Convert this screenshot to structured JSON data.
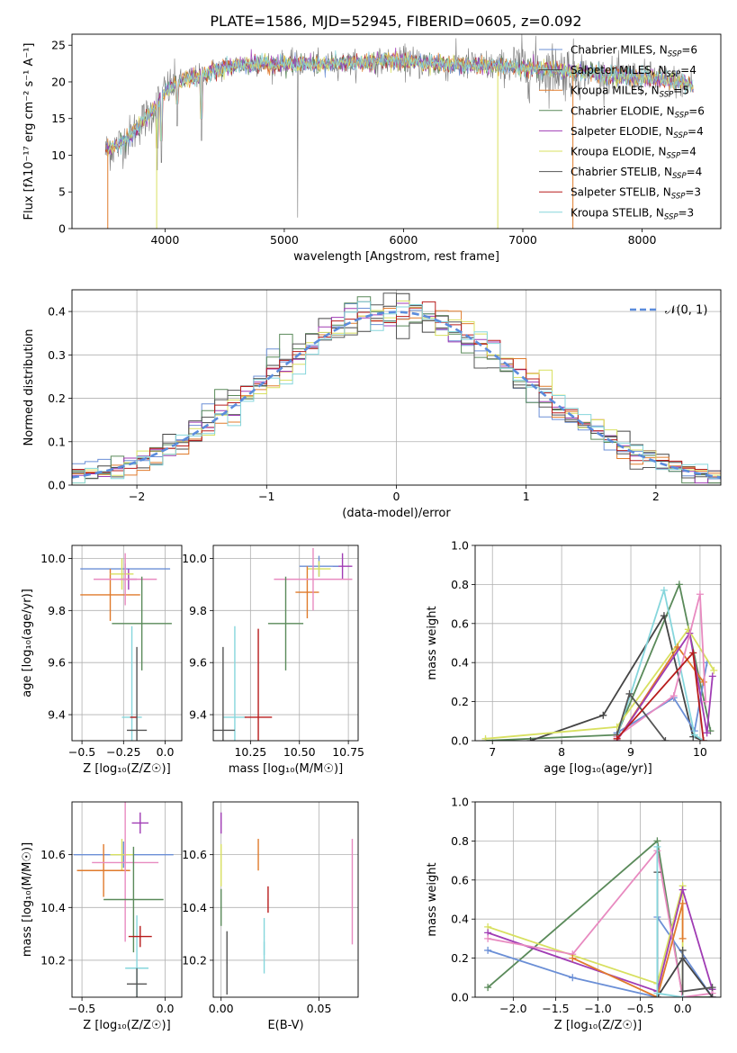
{
  "figure_title": "PLATE=1586, MJD=52945, FIBERID=0605, z=0.092",
  "colors": {
    "c_miles": "#6b8fd6",
    "s_miles": "#444444",
    "k_miles": "#e07b2c",
    "c_elodie": "#5a8a5a",
    "s_elodie": "#a03cb4",
    "k_elodie": "#d8e060",
    "c_stelib": "#555555",
    "s_stelib": "#b81c1c",
    "k_stelib": "#86d6dc",
    "pink": "#e88ac0",
    "normal_curve": "#5b8cdc"
  },
  "chart_data": [
    {
      "type": "line",
      "title": "PLATE=1586, MJD=52945, FIBERID=0605, z=0.092",
      "xlabel": "wavelength [Angstrom, rest frame]",
      "ylabel": "Flux [fλ10⁻¹⁷ erg cm⁻² s⁻¹ A⁻¹]",
      "xlim": [
        3220,
        8660
      ],
      "ylim": [
        0,
        26.5
      ],
      "xticks": [
        "4000",
        "5000",
        "6000",
        "7000",
        "8000"
      ],
      "yticks": [
        "0",
        "5",
        "10",
        "15",
        "20",
        "25"
      ],
      "legend_position": "right",
      "series": [
        {
          "name": "Chabrier MILES, N_SSP=6",
          "color": "#6b8fd6"
        },
        {
          "name": "Salpeter MILES, N_SSP=4",
          "color": "#444444"
        },
        {
          "name": "Kroupa MILES, N_SSP=5",
          "color": "#e07b2c"
        },
        {
          "name": "Chabrier ELODIE, N_SSP=6",
          "color": "#5a8a5a"
        },
        {
          "name": "Salpeter ELODIE, N_SSP=4",
          "color": "#a03cb4"
        },
        {
          "name": "Kroupa ELODIE, N_SSP=4",
          "color": "#d8e060"
        },
        {
          "name": "Chabrier STELIB, N_SSP=4",
          "color": "#555555"
        },
        {
          "name": "Salpeter STELIB, N_SSP=3",
          "color": "#b81c1c"
        },
        {
          "name": "Kroupa STELIB, N_SSP=3",
          "color": "#86d6dc"
        }
      ],
      "continuum": {
        "x": [
          3500,
          3600,
          3700,
          3800,
          3900,
          4000,
          4100,
          4200,
          4300,
          4400,
          4500,
          4700,
          5000,
          5300,
          5600,
          5900,
          6200,
          6500,
          6800,
          7100,
          7400,
          7700,
          8000,
          8200,
          8430
        ],
        "y": [
          10.5,
          11.3,
          12.5,
          14.5,
          16.0,
          18.8,
          19.8,
          20.5,
          20.8,
          21.5,
          22.0,
          22.5,
          22.5,
          22.4,
          22.6,
          22.9,
          22.5,
          22.3,
          22.1,
          21.8,
          21.5,
          21.0,
          20.6,
          20.3,
          19.6
        ]
      },
      "absorption_lines": [
        {
          "x": 3934,
          "y": 8
        },
        {
          "x": 3969,
          "y": 9
        },
        {
          "x": 4102,
          "y": 14
        },
        {
          "x": 4305,
          "y": 12
        },
        {
          "x": 5112,
          "y": 1.5
        }
      ],
      "model_edges": [
        {
          "x": 3520,
          "start": 0,
          "end": 10.5
        },
        {
          "x": 3930,
          "start": 0,
          "end": 15
        },
        {
          "x": 6790,
          "start": 0,
          "end": 22.3
        },
        {
          "x": 7420,
          "start": 0,
          "end": 21.5
        }
      ]
    },
    {
      "type": "line",
      "xlabel": "(data-model)/error",
      "ylabel": "Normed distribution",
      "xlim": [
        -2.5,
        2.5
      ],
      "ylim": [
        0,
        0.45
      ],
      "xticks": [
        "−2",
        "−1",
        "0",
        "1",
        "2"
      ],
      "yticks": [
        "0.0",
        "0.1",
        "0.2",
        "0.3",
        "0.4"
      ],
      "legend": "𝒩(0, 1)",
      "legend_position": "top-right",
      "bin_width": 0.1,
      "histogram_series": 9
    },
    {
      "type": "scatter",
      "xlabel": "Z [log₁₀(Z/Z☉)]",
      "ylabel": "age  [log₁₀(age/yr)]",
      "xlim": [
        -0.56,
        0.1
      ],
      "ylim": [
        9.3,
        10.05
      ],
      "xticks": [
        "−0.5",
        "−0.25",
        "0.0"
      ],
      "yticks": [
        "9.4",
        "9.6",
        "9.8",
        "10.0"
      ],
      "points": [
        {
          "x": -0.24,
          "y": 9.96,
          "xerr": 0.27,
          "yerr": 0.02,
          "color": "#6b8fd6"
        },
        {
          "x": -0.22,
          "y": 9.92,
          "xerr": 0.05,
          "yerr": 0.04,
          "color": "#a03cb4"
        },
        {
          "x": -0.33,
          "y": 9.86,
          "xerr": 0.18,
          "yerr": 0.1,
          "color": "#e07b2c"
        },
        {
          "x": -0.26,
          "y": 9.94,
          "xerr": 0.07,
          "yerr": 0.06,
          "color": "#d8e060"
        },
        {
          "x": -0.24,
          "y": 9.92,
          "xerr": 0.19,
          "yerr": 0.1,
          "color": "#e88ac0"
        },
        {
          "x": -0.14,
          "y": 9.75,
          "xerr": 0.18,
          "yerr": 0.18,
          "color": "#5a8a5a"
        },
        {
          "x": -0.2,
          "y": 9.39,
          "xerr": 0.06,
          "yerr": 0.35,
          "color": "#86d6dc"
        },
        {
          "x": -0.19,
          "y": 9.39,
          "xerr": 0.02,
          "yerr": 0.0,
          "color": "#b81c1c"
        },
        {
          "x": -0.17,
          "y": 9.34,
          "xerr": 0.06,
          "yerr": 0.32,
          "color": "#555555"
        }
      ]
    },
    {
      "type": "scatter",
      "xlabel": "mass [log₁₀(M/M☉)]",
      "ylabel": "",
      "xlim": [
        10.06,
        10.8
      ],
      "ylim": [
        9.3,
        10.05
      ],
      "xticks": [
        "10.25",
        "10.50",
        "10.75"
      ],
      "yticks": [
        "9.4",
        "9.6",
        "9.8",
        "10.0"
      ],
      "points": [
        {
          "x": 10.72,
          "y": 9.97,
          "xerr": 0.05,
          "yerr": 0.05,
          "color": "#a03cb4"
        },
        {
          "x": 10.6,
          "y": 9.97,
          "xerr": 0.1,
          "yerr": 0.04,
          "color": "#6b8fd6"
        },
        {
          "x": 10.6,
          "y": 9.96,
          "xerr": 0.06,
          "yerr": 0.03,
          "color": "#d8e060"
        },
        {
          "x": 10.54,
          "y": 9.87,
          "xerr": 0.06,
          "yerr": 0.1,
          "color": "#e07b2c"
        },
        {
          "x": 10.57,
          "y": 9.92,
          "xerr": 0.2,
          "yerr": 0.12,
          "color": "#e88ac0"
        },
        {
          "x": 10.43,
          "y": 9.75,
          "xerr": 0.09,
          "yerr": 0.18,
          "color": "#5a8a5a"
        },
        {
          "x": 10.17,
          "y": 9.39,
          "xerr": 0.06,
          "yerr": 0.35,
          "color": "#86d6dc"
        },
        {
          "x": 10.29,
          "y": 9.39,
          "xerr": 0.07,
          "yerr": 0.34,
          "color": "#b81c1c"
        },
        {
          "x": 10.11,
          "y": 9.34,
          "xerr": 0.06,
          "yerr": 0.32,
          "color": "#555555"
        }
      ]
    },
    {
      "type": "line",
      "xlabel": "age  [log₁₀(age/yr)]",
      "ylabel": "mass weight",
      "xlim": [
        6.75,
        10.3
      ],
      "ylim": [
        0,
        1.0
      ],
      "xticks": [
        "7",
        "8",
        "9",
        "10"
      ],
      "yticks": [
        "0.0",
        "0.2",
        "0.4",
        "0.6",
        "0.8",
        "1.0"
      ],
      "series": [
        {
          "color": "#5a8a5a",
          "x": [
            6.9,
            8.8,
            9.7,
            10.15
          ],
          "y": [
            0.0,
            0.03,
            0.8,
            0.05
          ]
        },
        {
          "color": "#444444",
          "x": [
            7.55,
            8.6,
            9.48,
            9.9,
            10.05
          ],
          "y": [
            0.0,
            0.13,
            0.64,
            0.02,
            0.0
          ]
        },
        {
          "color": "#6b8fd6",
          "x": [
            8.8,
            9.62,
            9.92,
            10.1
          ],
          "y": [
            0.04,
            0.22,
            0.05,
            0.4
          ]
        },
        {
          "color": "#86d6dc",
          "x": [
            8.8,
            9.48,
            9.92,
            10.05
          ],
          "y": [
            0.02,
            0.77,
            0.03,
            0.0
          ]
        },
        {
          "color": "#d8e060",
          "x": [
            6.9,
            8.8,
            9.83,
            10.2
          ],
          "y": [
            0.01,
            0.07,
            0.57,
            0.36
          ]
        },
        {
          "color": "#e07b2c",
          "x": [
            8.8,
            9.68,
            10.05
          ],
          "y": [
            0.0,
            0.48,
            0.3
          ]
        },
        {
          "color": "#a03cb4",
          "x": [
            8.8,
            9.85,
            10.1,
            10.18
          ],
          "y": [
            0.0,
            0.55,
            0.04,
            0.33
          ]
        },
        {
          "color": "#e88ac0",
          "x": [
            8.8,
            9.62,
            10.0,
            10.08
          ],
          "y": [
            0.02,
            0.23,
            0.75,
            0.2
          ]
        },
        {
          "color": "#555555",
          "x": [
            8.8,
            8.98,
            9.5
          ],
          "y": [
            0.03,
            0.24,
            0.0
          ]
        },
        {
          "color": "#b81c1c",
          "x": [
            8.8,
            9.9,
            10.05
          ],
          "y": [
            0.01,
            0.45,
            0.0
          ]
        }
      ]
    },
    {
      "type": "scatter",
      "xlabel": "Z [log₁₀(Z/Z☉)]",
      "ylabel": "mass [log₁₀(M/M☉)]",
      "xlim": [
        -0.56,
        0.1
      ],
      "ylim": [
        10.06,
        10.8
      ],
      "xticks": [
        "−0.5",
        "0.0"
      ],
      "yticks": [
        "10.2",
        "10.4",
        "10.6"
      ],
      "points": [
        {
          "x": -0.15,
          "y": 10.72,
          "xerr": 0.05,
          "yerr": 0.04,
          "color": "#a03cb4"
        },
        {
          "x": -0.25,
          "y": 10.6,
          "xerr": 0.3,
          "yerr": 0.05,
          "color": "#6b8fd6"
        },
        {
          "x": -0.26,
          "y": 10.6,
          "xerr": 0.07,
          "yerr": 0.06,
          "color": "#d8e060"
        },
        {
          "x": -0.37,
          "y": 10.54,
          "xerr": 0.16,
          "yerr": 0.1,
          "color": "#e07b2c"
        },
        {
          "x": -0.24,
          "y": 10.57,
          "xerr": 0.2,
          "yerr": 0.3,
          "color": "#e88ac0"
        },
        {
          "x": -0.19,
          "y": 10.43,
          "xerr": 0.18,
          "yerr": 0.2,
          "color": "#5a8a5a"
        },
        {
          "x": -0.17,
          "y": 10.17,
          "xerr": 0.07,
          "yerr": 0.2,
          "color": "#86d6dc"
        },
        {
          "x": -0.15,
          "y": 10.29,
          "xerr": 0.07,
          "yerr": 0.04,
          "color": "#b81c1c"
        },
        {
          "x": -0.17,
          "y": 10.11,
          "xerr": 0.06,
          "yerr": 0.06,
          "color": "#555555"
        }
      ]
    },
    {
      "type": "scatter",
      "xlabel": "E(B-V)",
      "ylabel": "",
      "xlim": [
        -0.004,
        0.07
      ],
      "ylim": [
        10.06,
        10.8
      ],
      "xticks": [
        "0.00",
        "0.05"
      ],
      "yticks": [
        "10.2",
        "10.4",
        "10.6"
      ],
      "points": [
        {
          "x": 0.0,
          "y": 10.72,
          "yerr": 0.04,
          "color": "#a03cb4"
        },
        {
          "x": 0.0,
          "y": 10.56,
          "yerr": 0.08,
          "color": "#d8e060"
        },
        {
          "x": 0.0,
          "y": 10.4,
          "yerr": 0.07,
          "color": "#5a8a5a"
        },
        {
          "x": 0.003,
          "y": 10.19,
          "yerr": 0.12,
          "color": "#555555"
        },
        {
          "x": 0.019,
          "y": 10.6,
          "yerr": 0.06,
          "color": "#e07b2c"
        },
        {
          "x": 0.022,
          "y": 10.29,
          "yerr": 0.07,
          "color": "#86d6dc"
        },
        {
          "x": 0.024,
          "y": 10.43,
          "yerr": 0.05,
          "color": "#b81c1c"
        },
        {
          "x": 0.022,
          "y": 10.21,
          "yerr": 0.06,
          "color": "#86d6dc"
        },
        {
          "x": 0.067,
          "y": 10.46,
          "yerr": 0.2,
          "color": "#e88ac0"
        }
      ]
    },
    {
      "type": "line",
      "xlabel": "Z [log₁₀(Z/Z☉)]",
      "ylabel": "mass weight",
      "xlim": [
        -2.45,
        0.45
      ],
      "ylim": [
        0,
        1.0
      ],
      "xticks": [
        "−2.0",
        "−1.5",
        "−1.0",
        "−0.5",
        "0.0"
      ],
      "yticks": [
        "0.0",
        "0.2",
        "0.4",
        "0.6",
        "0.8",
        "1.0"
      ],
      "series": [
        {
          "color": "#5a8a5a",
          "x": [
            -2.3,
            -0.3,
            0.0,
            0.35
          ],
          "y": [
            0.05,
            0.8,
            0.0,
            0.0
          ]
        },
        {
          "color": "#6b8fd6",
          "x": [
            -2.3,
            -1.3,
            -0.3,
            -0.3,
            0.35
          ],
          "y": [
            0.24,
            0.1,
            0.0,
            0.41,
            0.0
          ]
        },
        {
          "color": "#d8e060",
          "x": [
            -2.3,
            -0.3,
            0.0,
            0.0
          ],
          "y": [
            0.36,
            0.07,
            0.57,
            0.0
          ]
        },
        {
          "color": "#a03cb4",
          "x": [
            -2.3,
            -0.3,
            0.0,
            0.35,
            0.35
          ],
          "y": [
            0.33,
            0.03,
            0.55,
            0.04,
            0.0
          ]
        },
        {
          "color": "#e88ac0",
          "x": [
            -2.3,
            -1.3,
            -0.3,
            0.0,
            0.35
          ],
          "y": [
            0.3,
            0.22,
            0.75,
            0.0,
            0.02
          ]
        },
        {
          "color": "#e07b2c",
          "x": [
            -1.3,
            -0.3,
            0.0,
            0.0
          ],
          "y": [
            0.2,
            0.0,
            0.48,
            0.3
          ]
        },
        {
          "color": "#444444",
          "x": [
            -0.3,
            -0.3,
            0.0,
            0.35
          ],
          "y": [
            0.64,
            0.0,
            0.2,
            0.0
          ]
        },
        {
          "color": "#86d6dc",
          "x": [
            -0.3,
            -0.3,
            0.0
          ],
          "y": [
            0.77,
            0.02,
            0.0
          ]
        },
        {
          "color": "#555555",
          "x": [
            0.0,
            0.0,
            0.35
          ],
          "y": [
            0.24,
            0.03,
            0.05
          ]
        }
      ]
    }
  ]
}
